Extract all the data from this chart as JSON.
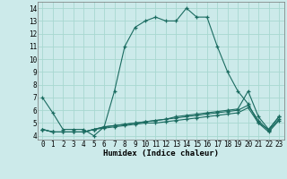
{
  "xlabel": "Humidex (Indice chaleur)",
  "bg_color": "#cceaea",
  "line_color": "#1a6b60",
  "grid_color": "#a8d8d0",
  "x": [
    0,
    1,
    2,
    3,
    4,
    5,
    6,
    7,
    8,
    9,
    10,
    11,
    12,
    13,
    14,
    15,
    16,
    17,
    18,
    19,
    20,
    21,
    22,
    23
  ],
  "series1": [
    7.0,
    5.8,
    4.5,
    4.5,
    4.5,
    4.0,
    4.7,
    7.5,
    11.0,
    12.5,
    13.0,
    13.3,
    13.0,
    13.0,
    14.0,
    13.3,
    13.3,
    11.0,
    9.0,
    7.5,
    6.5,
    5.0,
    4.5,
    5.5
  ],
  "series2": [
    4.5,
    4.3,
    4.3,
    4.3,
    4.3,
    4.5,
    4.7,
    4.8,
    4.9,
    5.0,
    5.1,
    5.2,
    5.3,
    5.5,
    5.6,
    5.7,
    5.8,
    5.9,
    6.0,
    6.1,
    7.5,
    5.5,
    4.5,
    5.5
  ],
  "series3": [
    4.5,
    4.3,
    4.3,
    4.3,
    4.3,
    4.5,
    4.7,
    4.8,
    4.9,
    5.0,
    5.1,
    5.2,
    5.3,
    5.4,
    5.5,
    5.6,
    5.7,
    5.8,
    5.9,
    6.0,
    6.4,
    5.2,
    4.4,
    5.3
  ],
  "series4": [
    4.5,
    4.3,
    4.3,
    4.3,
    4.3,
    4.5,
    4.6,
    4.7,
    4.8,
    4.9,
    5.0,
    5.0,
    5.1,
    5.2,
    5.3,
    5.4,
    5.5,
    5.6,
    5.7,
    5.8,
    6.2,
    5.0,
    4.3,
    5.2
  ],
  "ylim": [
    3.7,
    14.5
  ],
  "xlim": [
    -0.5,
    23.5
  ],
  "yticks": [
    4,
    5,
    6,
    7,
    8,
    9,
    10,
    11,
    12,
    13,
    14
  ],
  "xticks": [
    0,
    1,
    2,
    3,
    4,
    5,
    6,
    7,
    8,
    9,
    10,
    11,
    12,
    13,
    14,
    15,
    16,
    17,
    18,
    19,
    20,
    21,
    22,
    23
  ],
  "xlabel_fontsize": 6.5,
  "tick_fontsize": 5.5
}
